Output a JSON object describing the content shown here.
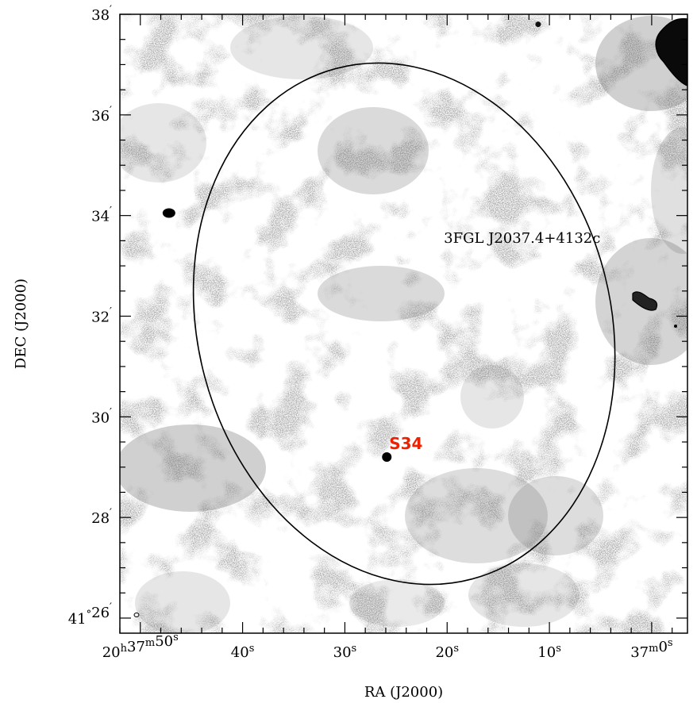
{
  "chart_data": {
    "type": "sky-map",
    "xlabel": "RA (J2000)",
    "ylabel": "DEC (J2000)",
    "x_ticks": [
      {
        "ra_s": 50,
        "label_h": "20",
        "label_m": "37",
        "label_s": "50"
      },
      {
        "ra_s": 40,
        "label_s": "40"
      },
      {
        "ra_s": 30,
        "label_s": "30"
      },
      {
        "ra_s": 20,
        "label_s": "20"
      },
      {
        "ra_s": 10,
        "label_s": "10"
      },
      {
        "ra_s": 0,
        "label_m": "37",
        "label_s": "0"
      }
    ],
    "y_ticks": [
      {
        "dec_arcmin": 26,
        "label_deg": "41",
        "label_min": "26"
      },
      {
        "dec_arcmin": 28,
        "label_min": "28"
      },
      {
        "dec_arcmin": 30,
        "label_min": "30"
      },
      {
        "dec_arcmin": 32,
        "label_min": "32"
      },
      {
        "dec_arcmin": 34,
        "label_min": "34"
      },
      {
        "dec_arcmin": 36,
        "label_min": "36"
      },
      {
        "dec_arcmin": 38,
        "label_min": "38"
      }
    ],
    "xlim_ra_s": [
      52.0,
      -3.5
    ],
    "ylim_dec_arcmin": [
      25.7,
      38.0
    ],
    "ellipse": {
      "label": "3FGL J2037.4+4132c",
      "center_ra_s": 24.2,
      "center_dec_arcmin": 31.85,
      "semi_axes_arcmin": [
        5.25,
        4.1
      ],
      "rotation_deg": -15
    },
    "markers": [
      {
        "name": "S34",
        "label": "S34",
        "color": "#ee2200",
        "ra_s": 25.9,
        "dec_arcmin": 29.2
      },
      {
        "name": "blob-left",
        "label": "",
        "ra_s": 47.2,
        "dec_arcmin": 34.05
      },
      {
        "name": "blob-top",
        "label": "",
        "ra_s": 11.1,
        "dec_arcmin": 37.8
      }
    ],
    "colors": {
      "background": "#ffffff",
      "diffuse_emission": "#333333",
      "source_label": "#ee2200"
    }
  }
}
